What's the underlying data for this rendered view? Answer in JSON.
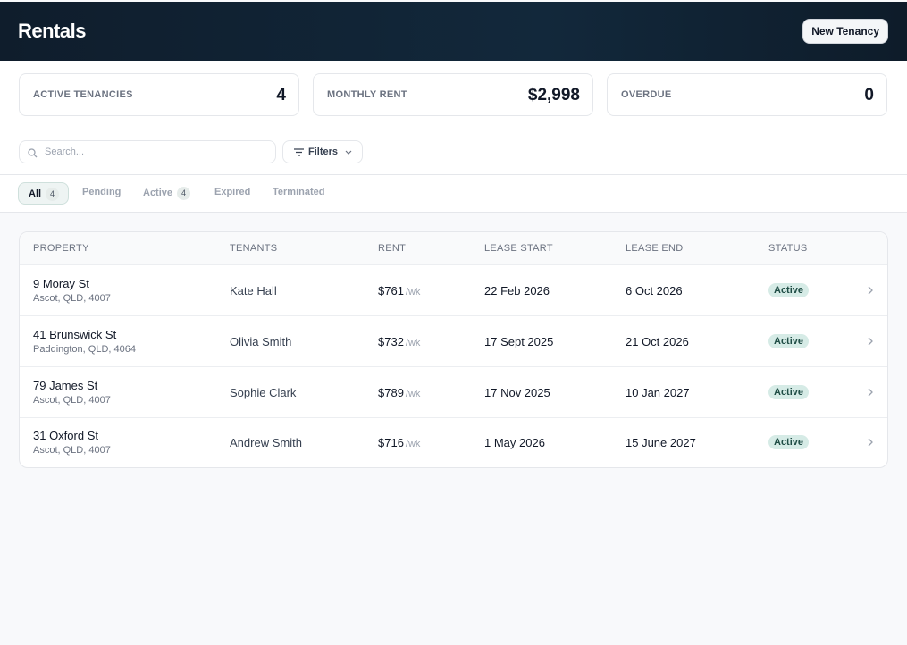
{
  "header": {
    "title": "Rentals",
    "button": "New Tenancy"
  },
  "stats": [
    {
      "label": "ACTIVE TENANCIES",
      "value": 4
    },
    {
      "label": "MONTHLY RENT",
      "value": "$2,998"
    },
    {
      "label": "OVERDUE",
      "value": 0
    }
  ],
  "toolbar": {
    "search_placeholder": "Search...",
    "filters": "Filters"
  },
  "tabs": [
    {
      "label": "All",
      "count": 4
    },
    {
      "label": "Pending"
    },
    {
      "label": "Active",
      "count": 4
    },
    {
      "label": "Expired"
    },
    {
      "label": "Terminated"
    }
  ],
  "table": {
    "columns": [
      "PROPERTY",
      "TENANTS",
      "RENT",
      "LEASE START",
      "LEASE END",
      "STATUS"
    ],
    "rows": [
      {
        "property": "9 Moray St",
        "address": "Ascot, QLD, 4007",
        "tenant": "Kate Hall",
        "rent": "$761",
        "rent_unit": "/wk",
        "lease_start": "22 Feb 2026",
        "lease_end": "6 Oct 2026",
        "status": "Active"
      },
      {
        "property": "41 Brunswick St",
        "address": "Paddington, QLD, 4064",
        "tenant": "Olivia Smith",
        "rent": "$732",
        "rent_unit": "/wk",
        "lease_start": "17 Sept 2025",
        "lease_end": "21 Oct 2026",
        "status": "Active"
      },
      {
        "property": "79 James St",
        "address": "Ascot, QLD, 4007",
        "tenant": "Sophie Clark",
        "rent": "$789",
        "rent_unit": "/wk",
        "lease_start": "17 Nov 2025",
        "lease_end": "10 Jan 2027",
        "status": "Active"
      },
      {
        "property": "31 Oxford St",
        "address": "Ascot, QLD, 4007",
        "tenant": "Andrew Smith",
        "rent": "$716",
        "rent_unit": "/wk",
        "lease_start": "1 May 2026",
        "lease_end": "15 June 2027",
        "status": "Active"
      }
    ]
  }
}
